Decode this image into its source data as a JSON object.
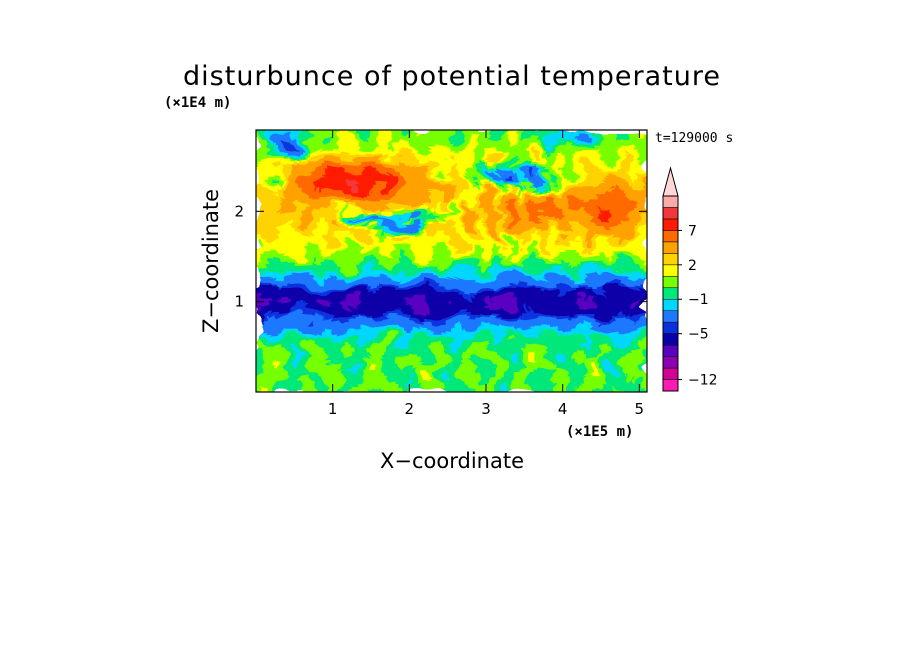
{
  "chart_data": {
    "type": "heatmap",
    "title": "disturbunce of potential temperature",
    "xlabel": "X−coordinate",
    "ylabel": "Z−coordinate",
    "x_unit": "(×1E5 m)",
    "y_unit": "(×1E4 m)",
    "time_label": "t=129000 s",
    "xlim": [
      0,
      5.1
    ],
    "ylim": [
      0,
      2.9
    ],
    "x_ticks": [
      1,
      2,
      3,
      4,
      5
    ],
    "y_ticks": [
      1,
      2
    ],
    "x_tick_labels": [
      "1",
      "2",
      "3",
      "4",
      "5"
    ],
    "y_tick_labels": [
      "1",
      "2"
    ],
    "colorbar": {
      "levels": [
        -12,
        -11,
        -9,
        -7,
        -5,
        -4,
        -2,
        -1,
        0,
        1,
        2,
        3,
        5,
        7,
        9,
        11
      ],
      "colors": [
        "#ff1ab3",
        "#d10096",
        "#8c00b0",
        "#5a00c0",
        "#0a00a8",
        "#0a30e0",
        "#1e78ff",
        "#00d7ff",
        "#00e87a",
        "#77ff00",
        "#ffff00",
        "#ffd300",
        "#ffa200",
        "#ff6a00",
        "#ff1a00",
        "#f2383b",
        "#ffaaaa",
        "#ffd7d7"
      ],
      "tick_labels": [
        "7",
        "2",
        "−1",
        "−5",
        "−12"
      ],
      "tick_values": [
        7,
        2,
        -1,
        -5,
        -12
      ],
      "extend": "max"
    },
    "field_bands": [
      {
        "z_range": [
          2.3,
          2.9
        ],
        "dominant_value": 3,
        "note_values": [
          -4,
          7
        ]
      },
      {
        "z_range": [
          1.6,
          2.3
        ],
        "dominant_value": 1,
        "note_values": [
          -5,
          8
        ]
      },
      {
        "z_range": [
          1.3,
          1.6
        ],
        "dominant_value": -1
      },
      {
        "z_range": [
          0.65,
          1.3
        ],
        "dominant_value": -5
      },
      {
        "z_range": [
          0.0,
          0.65
        ],
        "dominant_value": 0
      }
    ]
  }
}
